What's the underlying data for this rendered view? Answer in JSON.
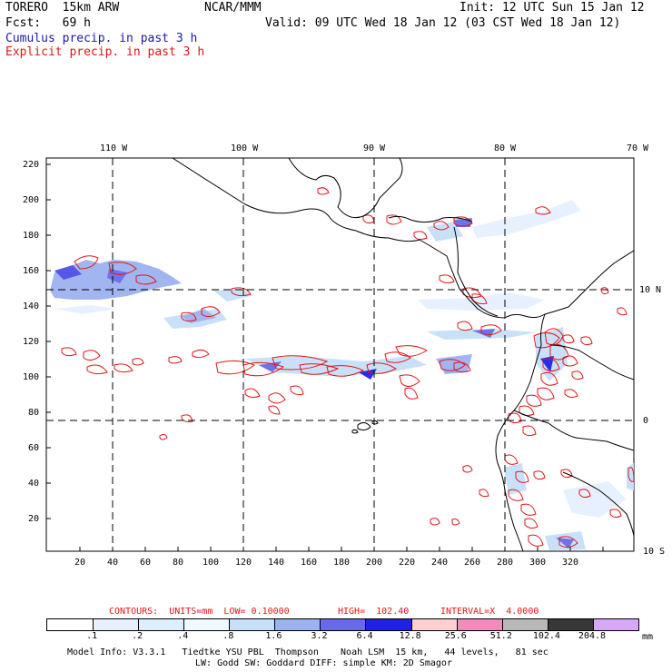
{
  "header": {
    "model": "TORERO  15km ARW",
    "org": "NCAR/MMM",
    "init": "Init: 12 UTC Sun 15 Jan 12",
    "fcst": "Fcst:   69 h",
    "valid": "Valid: 09 UTC Wed 18 Jan 12 (03 CST Wed 18 Jan 12)",
    "line_cumulus": "Cumulus precip. in past 3 h",
    "line_explicit": "Explicit precip. in past 3 h"
  },
  "map": {
    "lon_labels": [
      "110 W",
      "100 W",
      "90 W",
      "80 W",
      "70 W"
    ],
    "lat_labels": [
      "10 N",
      "0",
      "10 S"
    ],
    "y_ticks": [
      "220",
      "200",
      "180",
      "160",
      "140",
      "120",
      "100",
      "80",
      "60",
      "40",
      "20"
    ],
    "x_ticks": [
      "20",
      "40",
      "60",
      "80",
      "100",
      "120",
      "140",
      "160",
      "180",
      "200",
      "220",
      "240",
      "260",
      "280",
      "300",
      "320"
    ]
  },
  "contours_line": {
    "contours": "CONTOURS:  UNITS=mm  LOW= 0.10000",
    "high": "HIGH=  102.40",
    "interval": "INTERVAL=X  4.0000"
  },
  "colorbar": {
    "labels": [
      ".1",
      ".2",
      ".4",
      ".8",
      "1.6",
      "3.2",
      "6.4",
      "12.8",
      "25.6",
      "51.2",
      "102.4",
      "204.8"
    ],
    "unit": "mm",
    "colors": [
      "#ffffff",
      "#e6f0ff",
      "#ddeeff",
      "#eefaff",
      "#c6e0f8",
      "#9db2f0",
      "#6a6ae8",
      "#2020e8",
      "#ffd0d0",
      "#f08cbc",
      "#b8b8b8",
      "#383838",
      "#d8a8f8"
    ]
  },
  "footer": {
    "line1": "Model Info: V3.3.1   Tiedtke YSU PBL  Thompson    Noah LSM  15 km,   44 levels,   81 sec",
    "line2": "LW: Godd SW: Goddard DIFF: simple KM: 2D Smagor"
  }
}
